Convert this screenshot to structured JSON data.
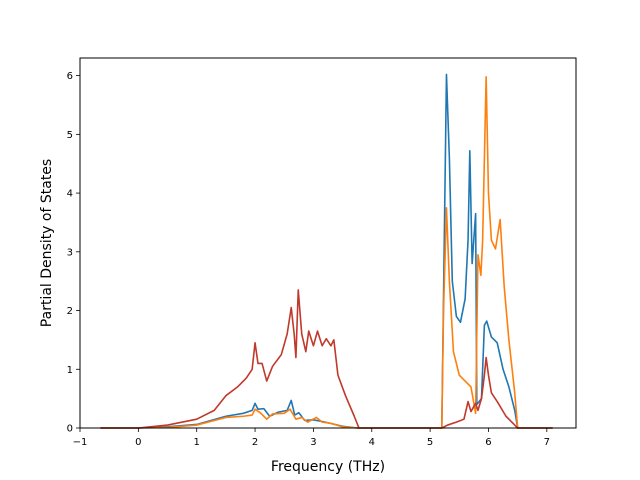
{
  "chart_data": {
    "type": "line",
    "title": "",
    "xlabel": "Frequency (THz)",
    "ylabel": "Partial Density of States",
    "xlim": [
      -1.0,
      7.5
    ],
    "ylim": [
      0,
      6.3
    ],
    "xticks": [
      -1,
      0,
      1,
      2,
      3,
      4,
      5,
      6,
      7
    ],
    "yticks": [
      0,
      1,
      2,
      3,
      4,
      5,
      6
    ],
    "grid": false,
    "legend": "none",
    "series": [
      {
        "color": "#1f77b4",
        "points": [
          [
            -0.65,
            0
          ],
          [
            0,
            0
          ],
          [
            0.5,
            0.02
          ],
          [
            1.0,
            0.06
          ],
          [
            1.5,
            0.2
          ],
          [
            1.8,
            0.25
          ],
          [
            1.95,
            0.3
          ],
          [
            2.0,
            0.42
          ],
          [
            2.05,
            0.32
          ],
          [
            2.15,
            0.33
          ],
          [
            2.25,
            0.2
          ],
          [
            2.4,
            0.27
          ],
          [
            2.55,
            0.3
          ],
          [
            2.62,
            0.47
          ],
          [
            2.68,
            0.22
          ],
          [
            2.75,
            0.26
          ],
          [
            2.85,
            0.13
          ],
          [
            3.0,
            0.14
          ],
          [
            3.2,
            0.1
          ],
          [
            3.5,
            0.03
          ],
          [
            3.75,
            0
          ],
          [
            5.2,
            0
          ],
          [
            5.22,
            1.5
          ],
          [
            5.28,
            6.02
          ],
          [
            5.33,
            4.6
          ],
          [
            5.38,
            2.5
          ],
          [
            5.45,
            1.9
          ],
          [
            5.52,
            1.8
          ],
          [
            5.6,
            2.2
          ],
          [
            5.65,
            3.2
          ],
          [
            5.68,
            4.72
          ],
          [
            5.72,
            2.8
          ],
          [
            5.78,
            3.65
          ],
          [
            5.8,
            0.4
          ],
          [
            5.88,
            0.5
          ],
          [
            5.93,
            1.75
          ],
          [
            5.97,
            1.82
          ],
          [
            6.05,
            1.55
          ],
          [
            6.15,
            1.45
          ],
          [
            6.25,
            1.0
          ],
          [
            6.35,
            0.7
          ],
          [
            6.45,
            0.3
          ],
          [
            6.5,
            0
          ],
          [
            7.1,
            0
          ]
        ]
      },
      {
        "color": "#ff7f0e",
        "points": [
          [
            -0.65,
            0
          ],
          [
            0,
            0
          ],
          [
            0.5,
            0.01
          ],
          [
            1.0,
            0.05
          ],
          [
            1.5,
            0.18
          ],
          [
            1.8,
            0.2
          ],
          [
            1.95,
            0.22
          ],
          [
            2.0,
            0.32
          ],
          [
            2.1,
            0.25
          ],
          [
            2.2,
            0.15
          ],
          [
            2.3,
            0.24
          ],
          [
            2.5,
            0.25
          ],
          [
            2.6,
            0.32
          ],
          [
            2.7,
            0.15
          ],
          [
            2.8,
            0.18
          ],
          [
            2.9,
            0.1
          ],
          [
            3.05,
            0.18
          ],
          [
            3.15,
            0.1
          ],
          [
            3.3,
            0.08
          ],
          [
            3.5,
            0.02
          ],
          [
            3.75,
            0
          ],
          [
            5.2,
            0
          ],
          [
            5.23,
            2.0
          ],
          [
            5.28,
            3.75
          ],
          [
            5.33,
            2.5
          ],
          [
            5.4,
            1.3
          ],
          [
            5.5,
            0.9
          ],
          [
            5.6,
            0.8
          ],
          [
            5.7,
            0.7
          ],
          [
            5.78,
            0.25
          ],
          [
            5.82,
            2.95
          ],
          [
            5.87,
            2.6
          ],
          [
            5.9,
            3.2
          ],
          [
            5.96,
            5.98
          ],
          [
            6.0,
            4.0
          ],
          [
            6.05,
            3.2
          ],
          [
            6.12,
            3.05
          ],
          [
            6.2,
            3.55
          ],
          [
            6.27,
            2.4
          ],
          [
            6.35,
            1.5
          ],
          [
            6.45,
            0.6
          ],
          [
            6.5,
            0
          ],
          [
            7.1,
            0
          ]
        ]
      },
      {
        "color": "#c0392b",
        "points": [
          [
            -0.65,
            0
          ],
          [
            0,
            0
          ],
          [
            0.5,
            0.05
          ],
          [
            1.0,
            0.15
          ],
          [
            1.3,
            0.3
          ],
          [
            1.5,
            0.55
          ],
          [
            1.7,
            0.7
          ],
          [
            1.85,
            0.85
          ],
          [
            1.95,
            1.0
          ],
          [
            2.0,
            1.45
          ],
          [
            2.05,
            1.1
          ],
          [
            2.12,
            1.1
          ],
          [
            2.2,
            0.8
          ],
          [
            2.3,
            1.05
          ],
          [
            2.45,
            1.25
          ],
          [
            2.55,
            1.6
          ],
          [
            2.62,
            2.05
          ],
          [
            2.67,
            1.6
          ],
          [
            2.7,
            1.2
          ],
          [
            2.74,
            2.35
          ],
          [
            2.8,
            1.6
          ],
          [
            2.87,
            1.3
          ],
          [
            2.92,
            1.65
          ],
          [
            3.0,
            1.4
          ],
          [
            3.07,
            1.65
          ],
          [
            3.15,
            1.4
          ],
          [
            3.22,
            1.52
          ],
          [
            3.3,
            1.4
          ],
          [
            3.35,
            1.5
          ],
          [
            3.42,
            0.9
          ],
          [
            3.55,
            0.55
          ],
          [
            3.7,
            0.2
          ],
          [
            3.78,
            0
          ],
          [
            5.2,
            0
          ],
          [
            5.3,
            0.05
          ],
          [
            5.45,
            0.1
          ],
          [
            5.58,
            0.15
          ],
          [
            5.65,
            0.45
          ],
          [
            5.7,
            0.28
          ],
          [
            5.78,
            0.42
          ],
          [
            5.82,
            0.3
          ],
          [
            5.88,
            0.5
          ],
          [
            5.93,
            0.9
          ],
          [
            5.96,
            1.2
          ],
          [
            6.0,
            0.9
          ],
          [
            6.05,
            0.6
          ],
          [
            6.15,
            0.45
          ],
          [
            6.3,
            0.2
          ],
          [
            6.45,
            0.05
          ],
          [
            6.5,
            0
          ],
          [
            7.1,
            0
          ]
        ]
      }
    ]
  }
}
